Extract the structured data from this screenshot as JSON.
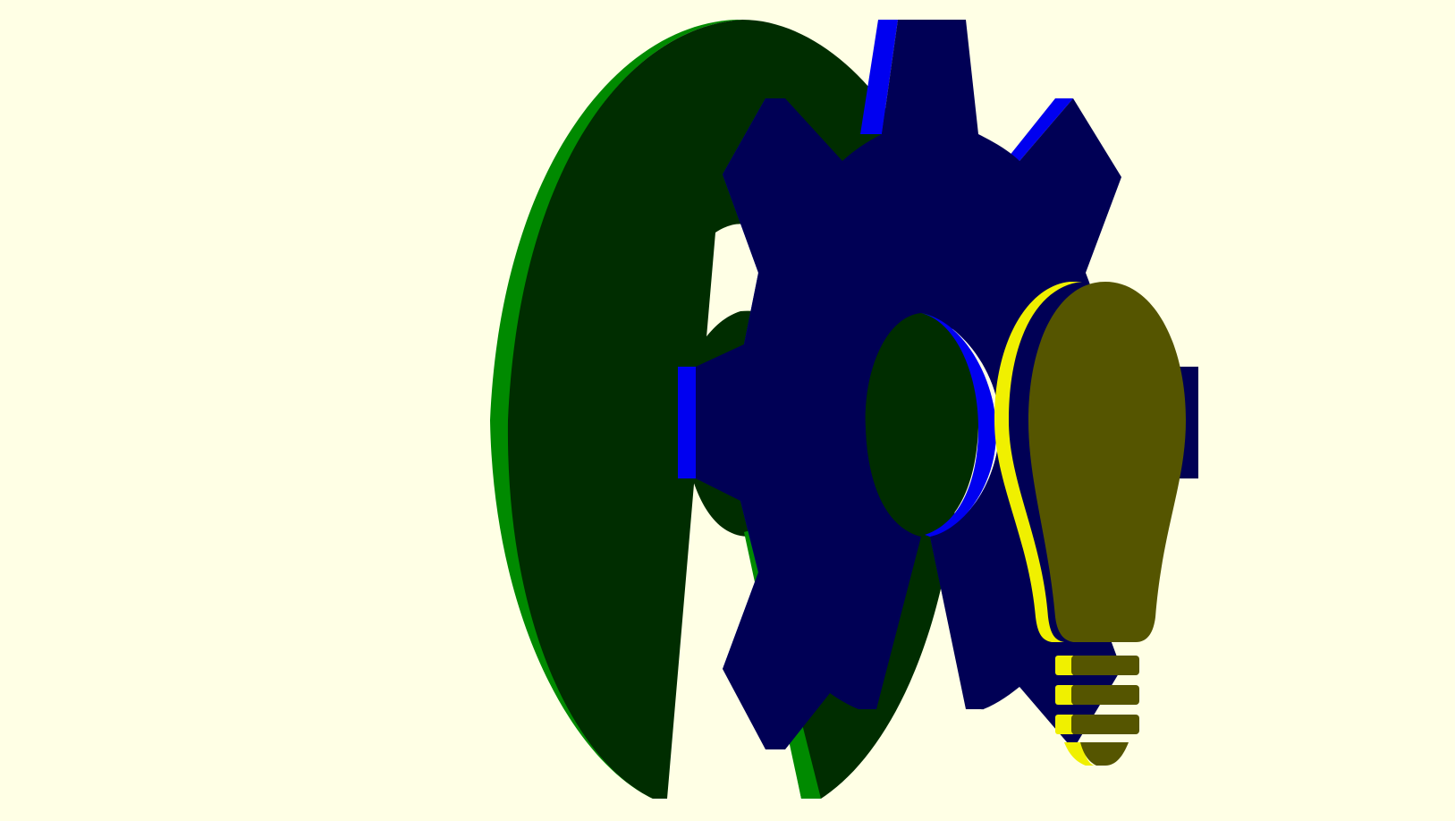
{
  "scene": {
    "background": "#ffffe5",
    "objects": [
      {
        "name": "open-hardware-logo-ring",
        "face": "#002d00",
        "side": "#008a00"
      },
      {
        "name": "gear",
        "face": "#000055",
        "side": "#0000f0"
      },
      {
        "name": "light-bulb",
        "face": "#555500",
        "side": "#f0f000"
      }
    ]
  }
}
